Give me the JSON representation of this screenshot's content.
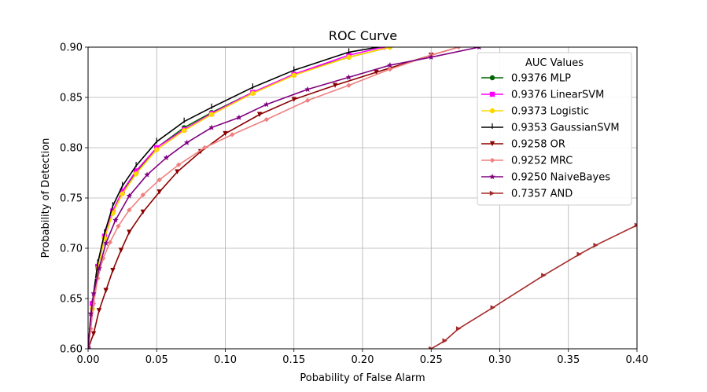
{
  "chart_data": {
    "type": "line",
    "title": "ROC Curve",
    "xlabel": "Pobability of False Alarm",
    "ylabel": "Probability of Detection",
    "xlim": [
      0.0,
      0.4
    ],
    "ylim": [
      0.6,
      0.9
    ],
    "xticks": [
      "0.00",
      "0.05",
      "0.10",
      "0.15",
      "0.20",
      "0.25",
      "0.30",
      "0.35",
      "0.40"
    ],
    "yticks": [
      "0.60",
      "0.65",
      "0.70",
      "0.75",
      "0.80",
      "0.85",
      "0.90"
    ],
    "grid": true,
    "legend": {
      "title": "AUC Values",
      "placement": "top-right"
    },
    "series": [
      {
        "name": "0.9376 MLP",
        "color": "#006400",
        "marker": "circle",
        "x": [
          0.0,
          0.003,
          0.007,
          0.012,
          0.018,
          0.025,
          0.035,
          0.05,
          0.07,
          0.09,
          0.12,
          0.15,
          0.19,
          0.22
        ],
        "y": [
          0.6,
          0.64,
          0.68,
          0.71,
          0.735,
          0.755,
          0.775,
          0.8,
          0.82,
          0.835,
          0.855,
          0.873,
          0.89,
          0.9
        ]
      },
      {
        "name": "0.9376 LinearSVM",
        "color": "#ff00ff",
        "marker": "square",
        "x": [
          0.0,
          0.003,
          0.007,
          0.012,
          0.018,
          0.025,
          0.035,
          0.05,
          0.07,
          0.09,
          0.12,
          0.15,
          0.19,
          0.215
        ],
        "y": [
          0.6,
          0.645,
          0.682,
          0.712,
          0.737,
          0.757,
          0.777,
          0.8,
          0.818,
          0.834,
          0.855,
          0.873,
          0.892,
          0.9
        ]
      },
      {
        "name": "0.9373 Logistic",
        "color": "#ffd700",
        "marker": "circle",
        "x": [
          0.0,
          0.003,
          0.007,
          0.012,
          0.018,
          0.025,
          0.035,
          0.05,
          0.07,
          0.09,
          0.12,
          0.15,
          0.19,
          0.22
        ],
        "y": [
          0.6,
          0.64,
          0.68,
          0.71,
          0.735,
          0.754,
          0.774,
          0.798,
          0.817,
          0.833,
          0.854,
          0.872,
          0.89,
          0.9
        ]
      },
      {
        "name": "0.9353 GaussianSVM",
        "color": "#000000",
        "marker": "vline",
        "x": [
          0.0,
          0.003,
          0.007,
          0.012,
          0.018,
          0.025,
          0.035,
          0.05,
          0.07,
          0.09,
          0.12,
          0.15,
          0.19,
          0.22
        ],
        "y": [
          0.6,
          0.645,
          0.685,
          0.715,
          0.742,
          0.762,
          0.782,
          0.806,
          0.826,
          0.84,
          0.86,
          0.877,
          0.895,
          0.902
        ]
      },
      {
        "name": "0.9258 OR",
        "color": "#8b0000",
        "marker": "triangle-down",
        "x": [
          0.0,
          0.004,
          0.008,
          0.013,
          0.018,
          0.024,
          0.03,
          0.04,
          0.052,
          0.065,
          0.082,
          0.1,
          0.125,
          0.15,
          0.18,
          0.21,
          0.25,
          0.27
        ],
        "y": [
          0.6,
          0.615,
          0.638,
          0.658,
          0.678,
          0.698,
          0.716,
          0.736,
          0.756,
          0.776,
          0.796,
          0.814,
          0.833,
          0.848,
          0.862,
          0.875,
          0.892,
          0.9
        ]
      },
      {
        "name": "0.9252 MRC",
        "color": "#f08080",
        "marker": "diamond",
        "x": [
          0.0,
          0.002,
          0.004,
          0.007,
          0.011,
          0.016,
          0.022,
          0.03,
          0.04,
          0.052,
          0.066,
          0.085,
          0.105,
          0.13,
          0.16,
          0.19,
          0.22,
          0.25,
          0.27
        ],
        "y": [
          0.6,
          0.62,
          0.645,
          0.67,
          0.69,
          0.706,
          0.722,
          0.738,
          0.753,
          0.768,
          0.783,
          0.8,
          0.813,
          0.828,
          0.847,
          0.862,
          0.878,
          0.892,
          0.9
        ]
      },
      {
        "name": "0.9250 NaiveBayes",
        "color": "#800080",
        "marker": "star",
        "x": [
          0.0,
          0.002,
          0.004,
          0.008,
          0.013,
          0.02,
          0.03,
          0.043,
          0.057,
          0.072,
          0.09,
          0.11,
          0.13,
          0.16,
          0.19,
          0.22,
          0.25,
          0.285
        ],
        "y": [
          0.6,
          0.635,
          0.655,
          0.68,
          0.705,
          0.728,
          0.752,
          0.773,
          0.79,
          0.805,
          0.82,
          0.83,
          0.843,
          0.858,
          0.87,
          0.882,
          0.89,
          0.9
        ]
      },
      {
        "name": "0.7357 AND",
        "color": "#a52a2a",
        "marker": "triangle-right",
        "x": [
          0.25,
          0.26,
          0.27,
          0.295,
          0.332,
          0.358,
          0.37,
          0.4
        ],
        "y": [
          0.6,
          0.608,
          0.62,
          0.641,
          0.673,
          0.694,
          0.703,
          0.723
        ]
      }
    ]
  }
}
